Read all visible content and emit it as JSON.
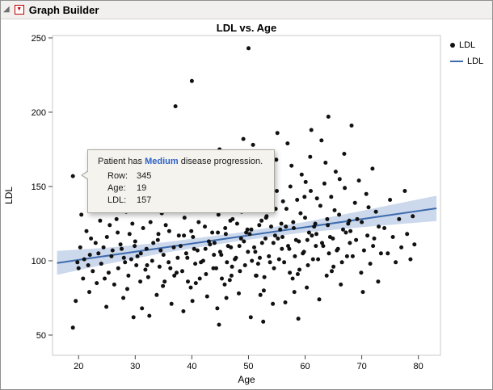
{
  "header": {
    "title": "Graph Builder"
  },
  "icons": {
    "outline_disclosure": "◢",
    "red_triangle_menu": "▼"
  },
  "colors": {
    "red_triangle": "#c00000",
    "highlight_text": "#2e62c9"
  },
  "legend": {
    "position": "right",
    "items": [
      {
        "label": "LDL",
        "marker": "point"
      },
      {
        "label": "LDL",
        "marker": "line"
      }
    ]
  },
  "tooltip": {
    "message_prefix": "Patient has ",
    "message_highlight": "Medium",
    "message_suffix": " disease progression.",
    "rows": [
      {
        "label": "Row:",
        "value": "345"
      },
      {
        "label": "Age:",
        "value": "19"
      },
      {
        "label": "LDL:",
        "value": "157"
      }
    ]
  },
  "chart_data": {
    "type": "scatter",
    "title": "LDL vs. Age",
    "xlabel": "Age",
    "ylabel": "LDL",
    "xlim": [
      15.4,
      83.9
    ],
    "ylim": [
      36.4,
      251.6
    ],
    "xticks": [
      20,
      30,
      40,
      50,
      60,
      70,
      80
    ],
    "yticks": [
      50,
      100,
      150,
      200,
      250
    ],
    "grid": false,
    "legend_position": "right",
    "colors": {
      "point": "#111111",
      "line": "#3e6bad",
      "band": "#a3b8dc"
    },
    "fit_line": {
      "x": [
        16.2,
        83.2
      ],
      "y": [
        98.5,
        135.3
      ]
    },
    "fit_band": {
      "x": [
        16.2,
        25,
        35,
        48,
        60,
        70,
        83.2
      ],
      "upper": [
        106.6,
        108.8,
        112.3,
        118.8,
        126.1,
        133.6,
        143.8
      ],
      "lower": [
        90.5,
        97.8,
        105.3,
        113.2,
        119.1,
        122.6,
        126.8
      ]
    },
    "points": [
      [
        19,
        157
      ],
      [
        19,
        55
      ],
      [
        19.5,
        73
      ],
      [
        20,
        95
      ],
      [
        20.3,
        109
      ],
      [
        20.8,
        88
      ],
      [
        21,
        101
      ],
      [
        21.4,
        120
      ],
      [
        21.9,
        79
      ],
      [
        22,
        104
      ],
      [
        22.5,
        93
      ],
      [
        23,
        112
      ],
      [
        23.2,
        85
      ],
      [
        23.8,
        127
      ],
      [
        24,
        98
      ],
      [
        24.4,
        109
      ],
      [
        24.9,
        69
      ],
      [
        25,
        116
      ],
      [
        25.3,
        92
      ],
      [
        25.8,
        103
      ],
      [
        20.5,
        131
      ],
      [
        21.7,
        97
      ],
      [
        22.8,
        143
      ],
      [
        23.5,
        105
      ],
      [
        24.6,
        88
      ],
      [
        25.5,
        124
      ],
      [
        19.8,
        99
      ],
      [
        22.2,
        115
      ],
      [
        26,
        107
      ],
      [
        26.3,
        84
      ],
      [
        26.7,
        128
      ],
      [
        27,
        95
      ],
      [
        27.4,
        111
      ],
      [
        27.9,
        75
      ],
      [
        28,
        102
      ],
      [
        28.4,
        133
      ],
      [
        28.8,
        90
      ],
      [
        29,
        118
      ],
      [
        29.3,
        101
      ],
      [
        29.7,
        62
      ],
      [
        30,
        113
      ],
      [
        30.2,
        97
      ],
      [
        30.6,
        140
      ],
      [
        30.9,
        86
      ],
      [
        31,
        105
      ],
      [
        31.4,
        122
      ],
      [
        31.8,
        94
      ],
      [
        26.5,
        152
      ],
      [
        27.6,
        108
      ],
      [
        28.6,
        81
      ],
      [
        29.5,
        125
      ],
      [
        30.4,
        103
      ],
      [
        31.2,
        68
      ],
      [
        26.9,
        119
      ],
      [
        27.2,
        137
      ],
      [
        28.2,
        99
      ],
      [
        29.9,
        110
      ],
      [
        31.6,
        146
      ],
      [
        32,
        108
      ],
      [
        32.3,
        89
      ],
      [
        32.7,
        126
      ],
      [
        33,
        100
      ],
      [
        33.4,
        141
      ],
      [
        33.8,
        77
      ],
      [
        34,
        114
      ],
      [
        34.3,
        96
      ],
      [
        34.7,
        132
      ],
      [
        35,
        104
      ],
      [
        35.2,
        86
      ],
      [
        35.6,
        155
      ],
      [
        35.9,
        99
      ],
      [
        36,
        120
      ],
      [
        36.4,
        71
      ],
      [
        36.8,
        109
      ],
      [
        37,
        135
      ],
      [
        37.3,
        92
      ],
      [
        37.7,
        117
      ],
      [
        32.5,
        63
      ],
      [
        33.6,
        148
      ],
      [
        34.5,
        107
      ],
      [
        35.4,
        124
      ],
      [
        36.2,
        95
      ],
      [
        37.5,
        102
      ],
      [
        32.9,
        170
      ],
      [
        34.9,
        83
      ],
      [
        36.6,
        160
      ],
      [
        33.2,
        112
      ],
      [
        37.1,
        204
      ],
      [
        35.7,
        138
      ],
      [
        36.9,
        90
      ],
      [
        34.1,
        118
      ],
      [
        32.1,
        97
      ],
      [
        38,
        110
      ],
      [
        38.3,
        93
      ],
      [
        38.7,
        129
      ],
      [
        39,
        105
      ],
      [
        39.4,
        144
      ],
      [
        39.8,
        82
      ],
      [
        40,
        221
      ],
      [
        40.2,
        116
      ],
      [
        40.6,
        98
      ],
      [
        40.9,
        135
      ],
      [
        41,
        107
      ],
      [
        41.4,
        88
      ],
      [
        41.8,
        152
      ],
      [
        42,
        100
      ],
      [
        42.3,
        123
      ],
      [
        42.7,
        76
      ],
      [
        43,
        113
      ],
      [
        43.4,
        141
      ],
      [
        43.8,
        95
      ],
      [
        38.5,
        66
      ],
      [
        39.6,
        158
      ],
      [
        40.4,
        108
      ],
      [
        41.2,
        126
      ],
      [
        42.5,
        91
      ],
      [
        43.6,
        119
      ],
      [
        38.9,
        172
      ],
      [
        40.7,
        85
      ],
      [
        42.9,
        164
      ],
      [
        39.2,
        102
      ],
      [
        43.2,
        111
      ],
      [
        38.1,
        134
      ],
      [
        41.6,
        99
      ],
      [
        42.1,
        147
      ],
      [
        39.9,
        120
      ],
      [
        40.1,
        73
      ],
      [
        43.9,
        104
      ],
      [
        38.6,
        117
      ],
      [
        41.9,
        137
      ],
      [
        42.4,
        108
      ],
      [
        39.3,
        86
      ],
      [
        44,
        112
      ],
      [
        44.3,
        95
      ],
      [
        44.7,
        131
      ],
      [
        45,
        106
      ],
      [
        45.4,
        146
      ],
      [
        45.8,
        84
      ],
      [
        46,
        118
      ],
      [
        46.2,
        99
      ],
      [
        46.6,
        137
      ],
      [
        46.9,
        109
      ],
      [
        47,
        90
      ],
      [
        47.4,
        154
      ],
      [
        47.8,
        102
      ],
      [
        48,
        125
      ],
      [
        48.3,
        78
      ],
      [
        48.7,
        115
      ],
      [
        49,
        143
      ],
      [
        49.4,
        97
      ],
      [
        49.8,
        121
      ],
      [
        44.5,
        68
      ],
      [
        45.6,
        160
      ],
      [
        46.4,
        110
      ],
      [
        47.2,
        128
      ],
      [
        48.5,
        93
      ],
      [
        49.6,
        119
      ],
      [
        44.9,
        175
      ],
      [
        46.7,
        87
      ],
      [
        48.9,
        166
      ],
      [
        45.2,
        104
      ],
      [
        49.2,
        113
      ],
      [
        44.1,
        136
      ],
      [
        47.6,
        101
      ],
      [
        48.1,
        149
      ],
      [
        45.9,
        122
      ],
      [
        46.1,
        75
      ],
      [
        49.9,
        106
      ],
      [
        44.6,
        119
      ],
      [
        47.9,
        139
      ],
      [
        48.4,
        110
      ],
      [
        45.3,
        88
      ],
      [
        49.1,
        182
      ],
      [
        44.8,
        57
      ],
      [
        46.8,
        127
      ],
      [
        47.1,
        96
      ],
      [
        48.8,
        133
      ],
      [
        50,
        243
      ],
      [
        50.2,
        118
      ],
      [
        50.6,
        100
      ],
      [
        50.9,
        137
      ],
      [
        51,
        109
      ],
      [
        51.4,
        90
      ],
      [
        51.8,
        156
      ],
      [
        52,
        102
      ],
      [
        52.3,
        127
      ],
      [
        52.7,
        80
      ],
      [
        53,
        115
      ],
      [
        53.4,
        145
      ],
      [
        53.8,
        99
      ],
      [
        54,
        123
      ],
      [
        54.3,
        71
      ],
      [
        54.7,
        117
      ],
      [
        55,
        147
      ],
      [
        55.4,
        101
      ],
      [
        55.8,
        125
      ],
      [
        50.4,
        62
      ],
      [
        51.6,
        162
      ],
      [
        52.4,
        112
      ],
      [
        53.2,
        130
      ],
      [
        54.5,
        95
      ],
      [
        55.6,
        121
      ],
      [
        50.8,
        178
      ],
      [
        52.8,
        89
      ],
      [
        54.9,
        168
      ],
      [
        51.2,
        106
      ],
      [
        55.2,
        115
      ],
      [
        50.1,
        138
      ],
      [
        53.6,
        103
      ],
      [
        54.1,
        151
      ],
      [
        51.9,
        124
      ],
      [
        52.1,
        77
      ],
      [
        55.9,
        108
      ],
      [
        50.5,
        121
      ],
      [
        53.9,
        141
      ],
      [
        54.4,
        112
      ],
      [
        51.3,
        90
      ],
      [
        55.1,
        186
      ],
      [
        52.6,
        59
      ],
      [
        53.1,
        129
      ],
      [
        51.7,
        98
      ],
      [
        54.8,
        135
      ],
      [
        56,
        116
      ],
      [
        56.3,
        99
      ],
      [
        56.7,
        135
      ],
      [
        57,
        110
      ],
      [
        57.4,
        150
      ],
      [
        57.8,
        88
      ],
      [
        58,
        122
      ],
      [
        58.2,
        103
      ],
      [
        58.6,
        141
      ],
      [
        58.9,
        113
      ],
      [
        59,
        94
      ],
      [
        59.4,
        158
      ],
      [
        59.8,
        106
      ],
      [
        60,
        129
      ],
      [
        60.3,
        82
      ],
      [
        60.7,
        119
      ],
      [
        61,
        147
      ],
      [
        61.4,
        101
      ],
      [
        61.8,
        125
      ],
      [
        56.5,
        72
      ],
      [
        57.6,
        164
      ],
      [
        58.4,
        114
      ],
      [
        59.2,
        132
      ],
      [
        60.5,
        97
      ],
      [
        61.6,
        123
      ],
      [
        56.9,
        179
      ],
      [
        58.7,
        91
      ],
      [
        60.9,
        170
      ],
      [
        57.2,
        108
      ],
      [
        61.2,
        117
      ],
      [
        56.1,
        140
      ],
      [
        59.6,
        105
      ],
      [
        60.1,
        153
      ],
      [
        57.9,
        126
      ],
      [
        58.1,
        79
      ],
      [
        61.9,
        110
      ],
      [
        56.6,
        123
      ],
      [
        59.9,
        143
      ],
      [
        60.4,
        114
      ],
      [
        57.3,
        92
      ],
      [
        61.1,
        188
      ],
      [
        58.8,
        61
      ],
      [
        62,
        118
      ],
      [
        62.3,
        101
      ],
      [
        62.7,
        137
      ],
      [
        63,
        112
      ],
      [
        63.4,
        152
      ],
      [
        63.8,
        90
      ],
      [
        64,
        124
      ],
      [
        64.2,
        105
      ],
      [
        64.6,
        143
      ],
      [
        64.9,
        115
      ],
      [
        65,
        96
      ],
      [
        65.4,
        160
      ],
      [
        65.8,
        108
      ],
      [
        66,
        131
      ],
      [
        66.3,
        84
      ],
      [
        66.7,
        121
      ],
      [
        67,
        149
      ],
      [
        67.4,
        103
      ],
      [
        67.8,
        127
      ],
      [
        62.5,
        74
      ],
      [
        63.6,
        166
      ],
      [
        64.4,
        116
      ],
      [
        65.2,
        134
      ],
      [
        66.5,
        99
      ],
      [
        67.6,
        125
      ],
      [
        62.9,
        181
      ],
      [
        64.7,
        93
      ],
      [
        66.9,
        172
      ],
      [
        63.2,
        110
      ],
      [
        67.2,
        119
      ],
      [
        62.1,
        142
      ],
      [
        65.6,
        107
      ],
      [
        66.1,
        155
      ],
      [
        63.9,
        128
      ],
      [
        64.1,
        197
      ],
      [
        67.9,
        112
      ],
      [
        68,
        120
      ],
      [
        68.4,
        103
      ],
      [
        68.8,
        139
      ],
      [
        69,
        114
      ],
      [
        69.5,
        154
      ],
      [
        69.9,
        92
      ],
      [
        70,
        126
      ],
      [
        70.4,
        107
      ],
      [
        70.8,
        145
      ],
      [
        71,
        117
      ],
      [
        71.5,
        98
      ],
      [
        71.9,
        162
      ],
      [
        72,
        110
      ],
      [
        72.5,
        133
      ],
      [
        72.9,
        86
      ],
      [
        73,
        123
      ],
      [
        68.2,
        191
      ],
      [
        70.2,
        79
      ],
      [
        71.2,
        136
      ],
      [
        73.4,
        105
      ],
      [
        69.2,
        128
      ],
      [
        72.2,
        115
      ],
      [
        74,
        122
      ],
      [
        74.6,
        105
      ],
      [
        75,
        141
      ],
      [
        75.5,
        116
      ],
      [
        76,
        99
      ],
      [
        76.6,
        128
      ],
      [
        77,
        109
      ],
      [
        77.6,
        147
      ],
      [
        78,
        118
      ],
      [
        78.6,
        101
      ],
      [
        79,
        130
      ],
      [
        79.3,
        111
      ]
    ]
  }
}
